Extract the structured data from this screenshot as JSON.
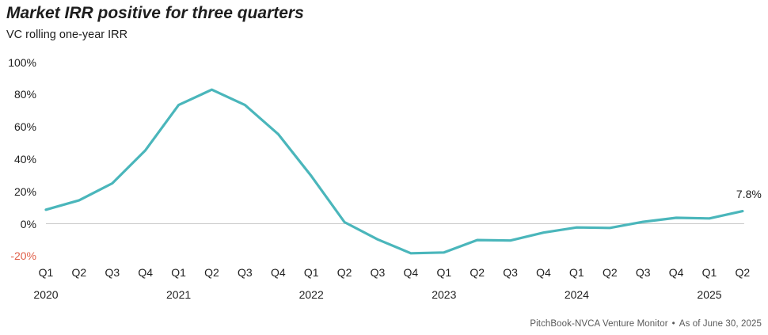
{
  "header": {
    "title": "Market IRR positive for three quarters",
    "subtitle": "VC rolling one-year IRR"
  },
  "chart_data": {
    "type": "line",
    "title": "Market IRR positive for three quarters",
    "subtitle": "VC rolling one-year IRR",
    "unit": "percent",
    "categories": [
      "Q1 2020",
      "Q2 2020",
      "Q3 2020",
      "Q4 2020",
      "Q1 2021",
      "Q2 2021",
      "Q3 2021",
      "Q4 2021",
      "Q1 2022",
      "Q2 2022",
      "Q3 2022",
      "Q4 2022",
      "Q1 2023",
      "Q2 2023",
      "Q3 2023",
      "Q4 2023",
      "Q1 2024",
      "Q2 2024",
      "Q3 2024",
      "Q4 2024",
      "Q1 2025",
      "Q2 2025"
    ],
    "quarter_labels": [
      "Q1",
      "Q2",
      "Q3",
      "Q4",
      "Q1",
      "Q2",
      "Q3",
      "Q4",
      "Q1",
      "Q2",
      "Q3",
      "Q4",
      "Q1",
      "Q2",
      "Q3",
      "Q4",
      "Q1",
      "Q2",
      "Q3",
      "Q4",
      "Q1",
      "Q2"
    ],
    "year_labels": [
      {
        "label": "2020",
        "index": 0
      },
      {
        "label": "2021",
        "index": 4
      },
      {
        "label": "2022",
        "index": 8
      },
      {
        "label": "2023",
        "index": 12
      },
      {
        "label": "2024",
        "index": 16
      },
      {
        "label": "2025",
        "index": 20
      }
    ],
    "series": [
      {
        "name": "VC rolling one-year IRR",
        "values": [
          8.7,
          14.5,
          25,
          45.5,
          73.5,
          83,
          73.5,
          55.5,
          29.5,
          1,
          -9.7,
          -18.3,
          -17.8,
          -10.1,
          -10.4,
          -5.5,
          -2.3,
          -2.6,
          1.2,
          3.7,
          3.3,
          7.8
        ]
      }
    ],
    "y_ticks": [
      100,
      80,
      60,
      40,
      20,
      0,
      -20
    ],
    "y_tick_suffix": "%",
    "ylim": [
      -25,
      105
    ],
    "grid": "zero-line-only",
    "legend_position": "none",
    "annotation": {
      "text": "7.8%",
      "point_index": 21
    },
    "colors": {
      "line": "#4ab6bb",
      "negative_tick": "#e0604a",
      "gridline": "#c9c9c9",
      "axis_text": "#212121",
      "footer_text": "#595959"
    }
  },
  "footer": {
    "source": "PitchBook-NVCA Venture Monitor",
    "separator": "•",
    "asof": "As of June 30, 2025"
  }
}
